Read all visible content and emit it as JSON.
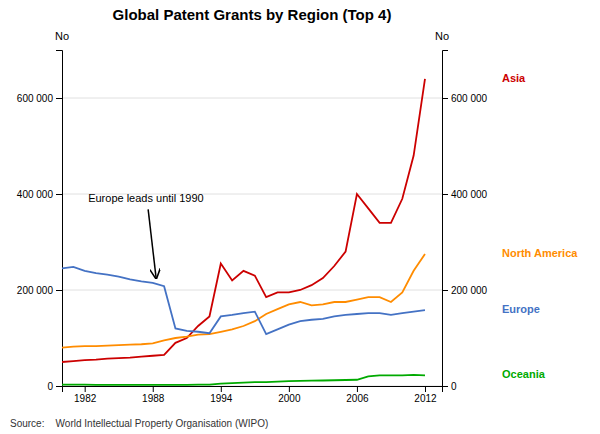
{
  "chart_data": {
    "type": "line",
    "title": "Global Patent Grants by Region (Top 4)",
    "source": "Source:    World Intellectual Property Organisation (WIPO)",
    "ylabel": "No",
    "y2label": "No",
    "x": [
      1980,
      1981,
      1982,
      1983,
      1984,
      1985,
      1986,
      1987,
      1988,
      1989,
      1990,
      1991,
      1992,
      1993,
      1994,
      1995,
      1996,
      1997,
      1998,
      1999,
      2000,
      2001,
      2002,
      2003,
      2004,
      2005,
      2006,
      2007,
      2008,
      2009,
      2010,
      2011,
      2012
    ],
    "xlim": [
      1980,
      2013.5
    ],
    "xticks": [
      1982,
      1988,
      1994,
      2000,
      2006,
      2012
    ],
    "ylim": [
      0,
      700000
    ],
    "yticks": [
      0,
      {
        "value": 200000,
        "label": "200 000"
      },
      {
        "value": 400000,
        "label": "400 000"
      },
      {
        "value": 600000,
        "label": "600 000"
      }
    ],
    "y2lim": [
      0,
      700000
    ],
    "y2ticks": [
      0,
      {
        "value": 200000,
        "label": "200 000"
      },
      {
        "value": 400000,
        "label": "400 000"
      },
      {
        "value": 600000,
        "label": "600 000"
      }
    ],
    "grid": true,
    "annotations": [
      {
        "text": "Europe leads until 1990",
        "x": 1988.3,
        "y": 218000
      }
    ],
    "series": [
      {
        "name": "Asia",
        "color": "#cc0000",
        "values": [
          50000,
          52000,
          54000,
          55000,
          57000,
          58000,
          59000,
          61000,
          63000,
          65000,
          90000,
          100000,
          125000,
          145000,
          255000,
          220000,
          240000,
          230000,
          185000,
          195000,
          195000,
          200000,
          210000,
          225000,
          250000,
          280000,
          400000,
          370000,
          340000,
          340000,
          390000,
          480000,
          640000
        ]
      },
      {
        "name": "North America",
        "color": "#ff8c00",
        "values": [
          80000,
          82000,
          83000,
          83000,
          84000,
          85000,
          86000,
          87000,
          89000,
          95000,
          100000,
          103000,
          107000,
          108000,
          113000,
          118000,
          125000,
          135000,
          150000,
          160000,
          170000,
          175000,
          168000,
          170000,
          175000,
          175000,
          180000,
          185000,
          185000,
          175000,
          195000,
          240000,
          275000
        ]
      },
      {
        "name": "Europe",
        "color": "#4472c4",
        "values": [
          245000,
          248000,
          240000,
          235000,
          232000,
          228000,
          222000,
          218000,
          215000,
          208000,
          120000,
          115000,
          113000,
          110000,
          145000,
          148000,
          152000,
          155000,
          108000,
          118000,
          128000,
          135000,
          138000,
          140000,
          145000,
          148000,
          150000,
          152000,
          152000,
          148000,
          152000,
          155000,
          158000
        ]
      },
      {
        "name": "Oceania",
        "color": "#00aa00",
        "values": [
          3000,
          3000,
          3000,
          2500,
          2500,
          2500,
          2500,
          2500,
          2500,
          2500,
          2500,
          2500,
          3000,
          3000,
          5000,
          6000,
          7000,
          8000,
          8000,
          9000,
          10000,
          10500,
          11000,
          11500,
          12000,
          12500,
          13000,
          20000,
          22000,
          22000,
          22000,
          23000,
          22000
        ]
      }
    ]
  }
}
